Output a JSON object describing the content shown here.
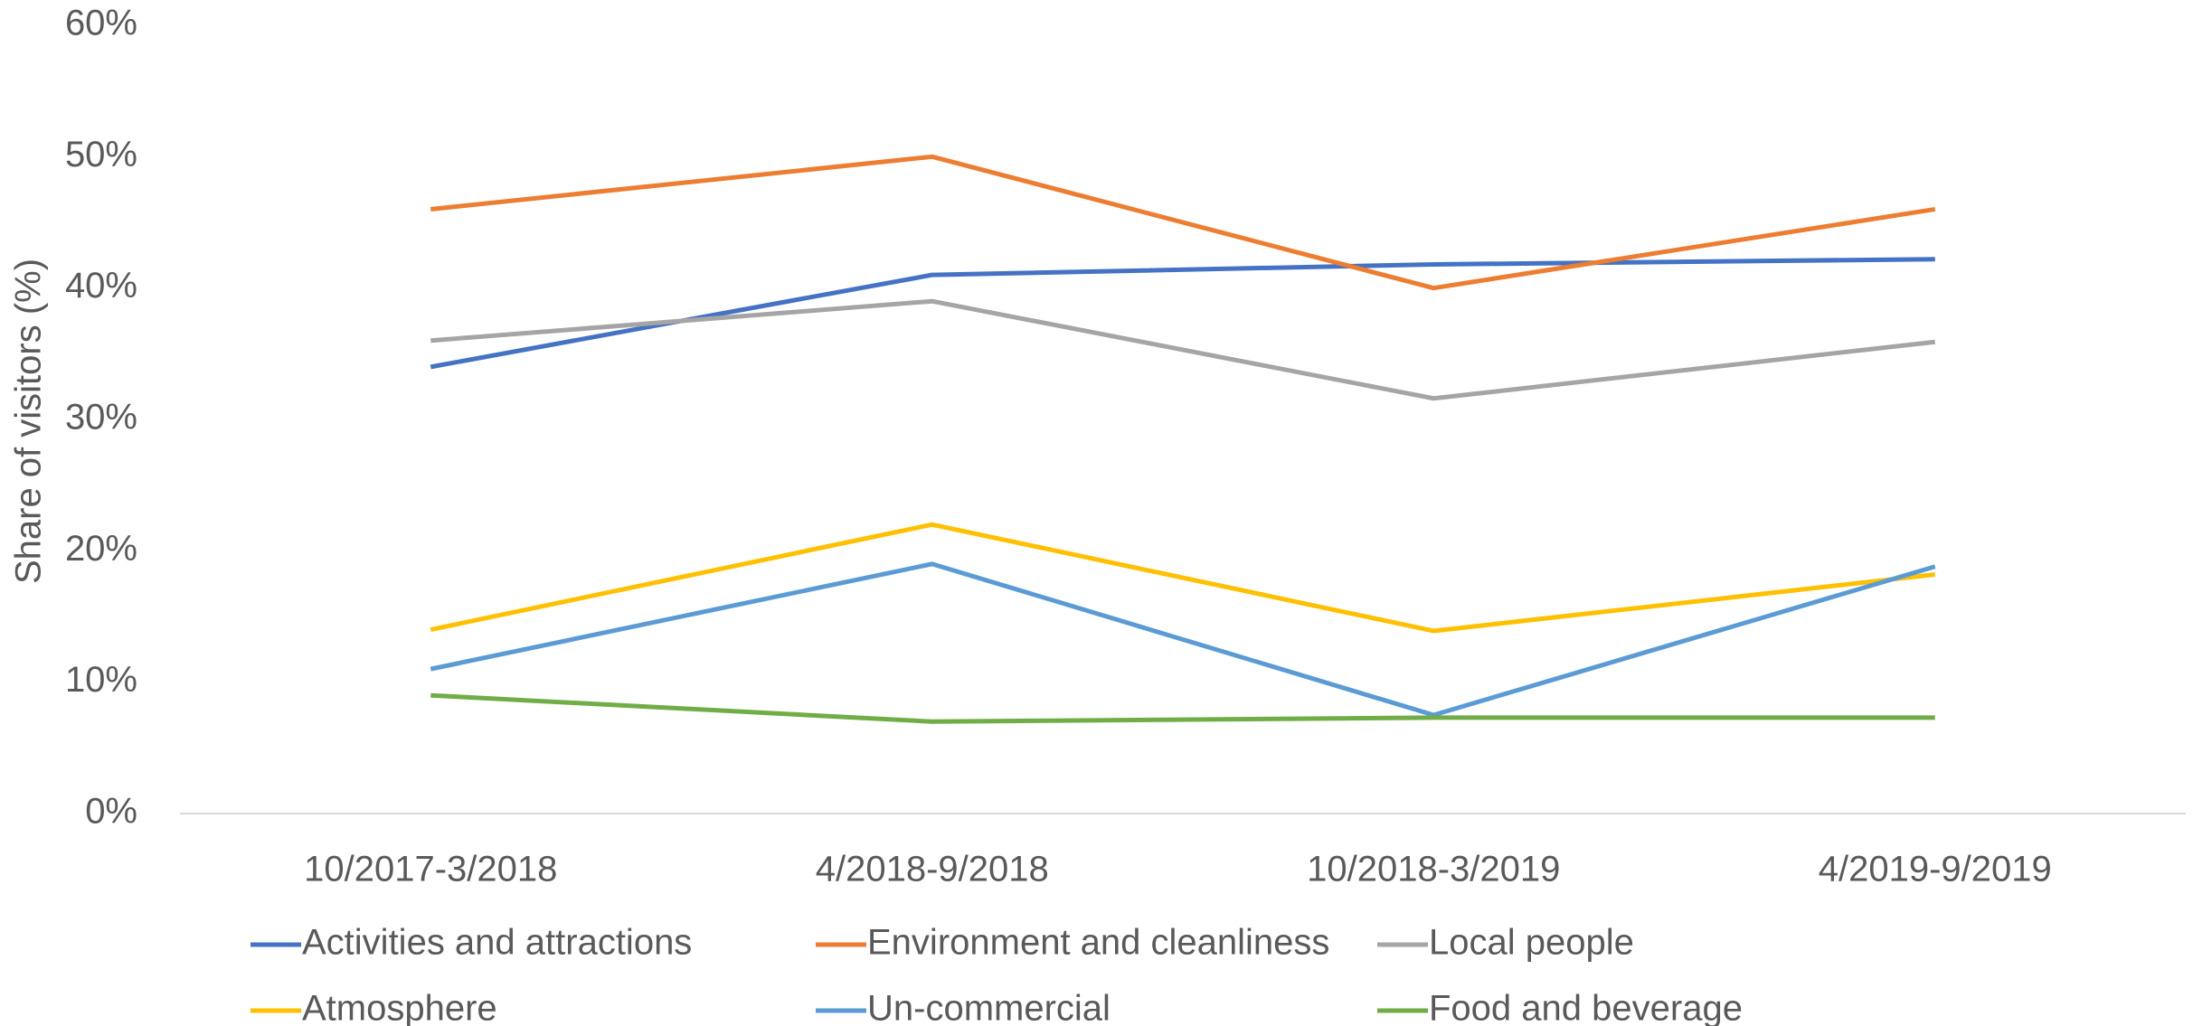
{
  "chart_data": {
    "type": "line",
    "y_label": "Share of visitors (%)",
    "categories": [
      "10/2017-3/2018",
      "4/2018-9/2018",
      "10/2018-3/2019",
      "4/2019-9/2019"
    ],
    "ylim": [
      0,
      60
    ],
    "yticks": [
      {
        "value": 0,
        "label": "0%"
      },
      {
        "value": 10,
        "label": "10%"
      },
      {
        "value": 20,
        "label": "20%"
      },
      {
        "value": 30,
        "label": "30%"
      },
      {
        "value": 40,
        "label": "40%"
      },
      {
        "value": 50,
        "label": "50%"
      },
      {
        "value": 60,
        "label": "60%"
      }
    ],
    "grid": false,
    "legend": "bottom",
    "series": [
      {
        "name": "Activities and attractions",
        "color": "#4472c4",
        "values": [
          34,
          41,
          41.8,
          42.2
        ]
      },
      {
        "name": "Environment and cleanliness",
        "color": "#ed7d31",
        "values": [
          46,
          50,
          40,
          46
        ]
      },
      {
        "name": "Local people",
        "color": "#a5a5a5",
        "values": [
          36,
          39,
          31.6,
          35.9
        ]
      },
      {
        "name": "Atmosphere",
        "color": "#ffc000",
        "values": [
          14,
          22,
          13.9,
          18.2
        ]
      },
      {
        "name": "Un-commercial",
        "color": "#5b9bd5",
        "values": [
          11,
          19,
          7.5,
          18.8
        ]
      },
      {
        "name": "Food and beverage",
        "color": "#70ad47",
        "values": [
          9,
          7,
          7.3,
          7.3
        ]
      }
    ]
  }
}
